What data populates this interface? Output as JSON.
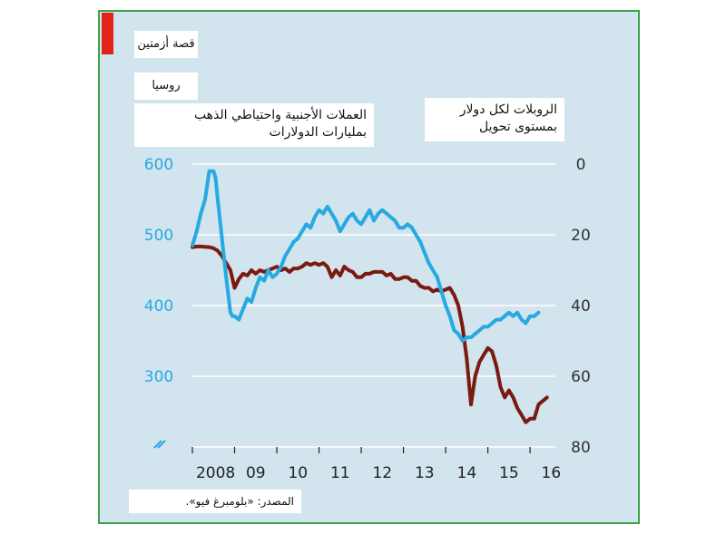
{
  "header": {
    "title": "قصة أزمتين",
    "subtitle": "روسيا"
  },
  "labels": {
    "left_series_line1": "العملات الأجنبية واحتياطي الذهب",
    "left_series_line2": "بمليارات الدولارات",
    "right_series_line1": "الروبلات لكل دولار",
    "right_series_line2": "بمستوى تحويل"
  },
  "source": "المصدر: «بلومبرغ فيو».",
  "colors": {
    "background": "#d2e4ee",
    "reserves_line": "#27a9e1",
    "rouble_line": "#7a1a10",
    "border": "#3aa347",
    "accent": "#e2231a"
  },
  "chart_data": {
    "type": "line",
    "title": "قصة أزمتين",
    "subtitle": "روسيا",
    "x_tick_labels": [
      "2008",
      "09",
      "10",
      "11",
      "12",
      "13",
      "14",
      "15",
      "16"
    ],
    "x_range": [
      2008,
      2016.6
    ],
    "left_axis": {
      "ticks": [
        "600",
        "500",
        "400",
        "300"
      ],
      "range": [
        220,
        600
      ],
      "break": true
    },
    "right_axis": {
      "ticks": [
        "0",
        "20",
        "40",
        "60",
        "80"
      ],
      "range": [
        0,
        80
      ],
      "inverted": true
    },
    "grid": "horizontal",
    "series": [
      {
        "name": "العملات الأجنبية واحتياطي الذهب",
        "axis": "left",
        "x": [
          2008.0,
          2008.1,
          2008.2,
          2008.3,
          2008.4,
          2008.5,
          2008.55,
          2008.6,
          2008.7,
          2008.8,
          2008.9,
          2008.95,
          2009.0,
          2009.1,
          2009.2,
          2009.3,
          2009.4,
          2009.5,
          2009.6,
          2009.7,
          2009.8,
          2009.9,
          2010.0,
          2010.1,
          2010.2,
          2010.3,
          2010.4,
          2010.5,
          2010.6,
          2010.7,
          2010.8,
          2010.9,
          2011.0,
          2011.1,
          2011.2,
          2011.3,
          2011.4,
          2011.5,
          2011.6,
          2011.7,
          2011.8,
          2011.9,
          2012.0,
          2012.1,
          2012.2,
          2012.3,
          2012.4,
          2012.5,
          2012.6,
          2012.7,
          2012.8,
          2012.9,
          2013.0,
          2013.1,
          2013.2,
          2013.3,
          2013.4,
          2013.5,
          2013.6,
          2013.7,
          2013.8,
          2013.9,
          2014.0,
          2014.1,
          2014.2,
          2014.3,
          2014.4,
          2014.5,
          2014.6,
          2014.7,
          2014.8,
          2014.9,
          2015.0,
          2015.1,
          2015.2,
          2015.3,
          2015.4,
          2015.5,
          2015.6,
          2015.7,
          2015.8,
          2015.9,
          2016.0,
          2016.1,
          2016.2
        ],
        "values": [
          485,
          505,
          530,
          550,
          590,
          590,
          580,
          550,
          495,
          440,
          390,
          385,
          385,
          380,
          395,
          410,
          405,
          425,
          440,
          435,
          450,
          440,
          445,
          455,
          470,
          480,
          490,
          495,
          505,
          515,
          510,
          525,
          535,
          530,
          540,
          530,
          520,
          505,
          515,
          525,
          530,
          520,
          515,
          525,
          535,
          520,
          530,
          535,
          530,
          525,
          520,
          510,
          510,
          515,
          510,
          500,
          490,
          475,
          460,
          450,
          440,
          420,
          400,
          385,
          365,
          360,
          350,
          355,
          355,
          360,
          365,
          370,
          370,
          375,
          380,
          380,
          385,
          390,
          385,
          390,
          380,
          375,
          385,
          385,
          390
        ]
      },
      {
        "name": "الروبلات لكل دولار",
        "axis": "right",
        "x": [
          2008.0,
          2008.1,
          2008.2,
          2008.3,
          2008.4,
          2008.5,
          2008.6,
          2008.7,
          2008.8,
          2008.9,
          2009.0,
          2009.1,
          2009.2,
          2009.3,
          2009.4,
          2009.5,
          2009.6,
          2009.7,
          2009.8,
          2009.9,
          2010.0,
          2010.1,
          2010.2,
          2010.3,
          2010.4,
          2010.5,
          2010.6,
          2010.7,
          2010.8,
          2010.9,
          2011.0,
          2011.1,
          2011.2,
          2011.3,
          2011.4,
          2011.5,
          2011.6,
          2011.7,
          2011.8,
          2011.9,
          2012.0,
          2012.1,
          2012.2,
          2012.3,
          2012.4,
          2012.5,
          2012.6,
          2012.7,
          2012.8,
          2012.9,
          2013.0,
          2013.1,
          2013.2,
          2013.3,
          2013.4,
          2013.5,
          2013.6,
          2013.7,
          2013.8,
          2013.9,
          2014.0,
          2014.1,
          2014.2,
          2014.3,
          2014.4,
          2014.5,
          2014.6,
          2014.7,
          2014.8,
          2014.9,
          2015.0,
          2015.1,
          2015.2,
          2015.3,
          2015.4,
          2015.5,
          2015.6,
          2015.7,
          2015.8,
          2015.9,
          2016.0,
          2016.1,
          2016.2,
          2016.3,
          2016.4
        ],
        "values": [
          23.5,
          23.3,
          23.3,
          23.4,
          23.5,
          23.8,
          24.5,
          26,
          28,
          30,
          35,
          32.5,
          31,
          31.5,
          30,
          31,
          30,
          30.5,
          30,
          29.5,
          29,
          30,
          29.5,
          30.5,
          29.5,
          29.5,
          29,
          28,
          28.5,
          28,
          28.5,
          28,
          29,
          32,
          30,
          31.5,
          29,
          30,
          30.5,
          32,
          32,
          31,
          31,
          30.5,
          30.5,
          30.5,
          31.5,
          31,
          32.5,
          32.5,
          32,
          32,
          33,
          33,
          34.5,
          35,
          35,
          36,
          35.5,
          36,
          35.5,
          35,
          37,
          40,
          46,
          55,
          68,
          60,
          56,
          54,
          52,
          53,
          57,
          63,
          66,
          64,
          66,
          69,
          71,
          73,
          72,
          72,
          68,
          67,
          66
        ]
      }
    ]
  }
}
